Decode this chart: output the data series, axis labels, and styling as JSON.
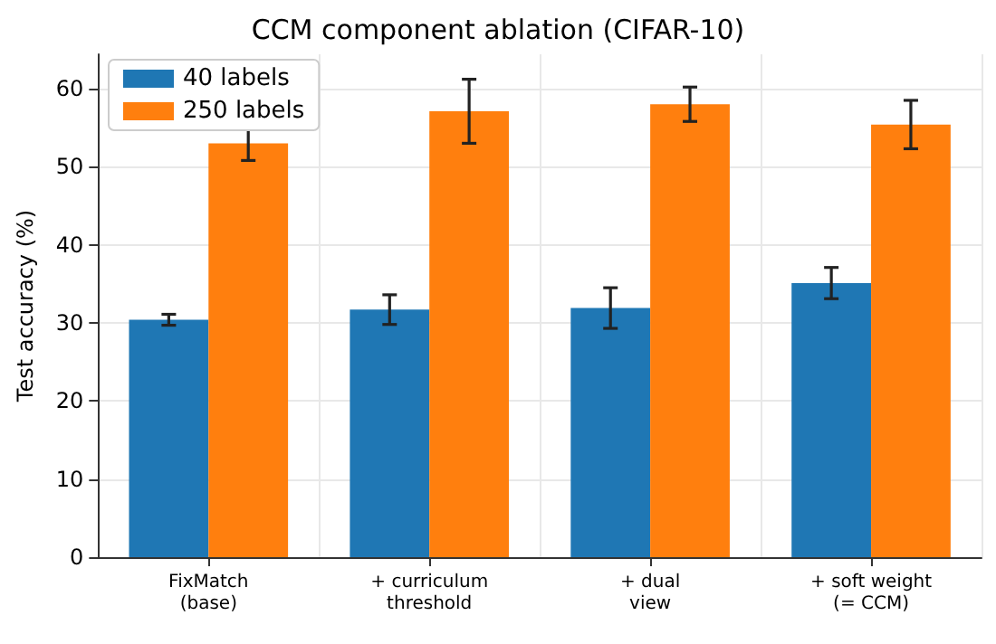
{
  "chart_data": {
    "type": "bar",
    "title": "CCM component ablation (CIFAR-10)",
    "ylabel": "Test accuracy (%)",
    "categories": [
      "FixMatch\n(base)",
      "+ curriculum\nthreshold",
      "+ dual\nview",
      "+ soft weight\n(= CCM)"
    ],
    "series": [
      {
        "name": "40 labels",
        "color": "#1f77b4",
        "values": [
          30.4,
          31.7,
          31.9,
          35.1
        ],
        "errors": [
          0.7,
          1.9,
          2.6,
          2.0
        ]
      },
      {
        "name": "250 labels",
        "color": "#ff7f0e",
        "values": [
          53.0,
          57.1,
          58.0,
          55.4
        ],
        "errors": [
          2.2,
          4.1,
          2.2,
          3.1
        ]
      }
    ],
    "ylim": [
      0,
      64.4
    ],
    "yticks": [
      0,
      10,
      20,
      30,
      40,
      50,
      60
    ],
    "grid": true,
    "legend": "top left"
  }
}
